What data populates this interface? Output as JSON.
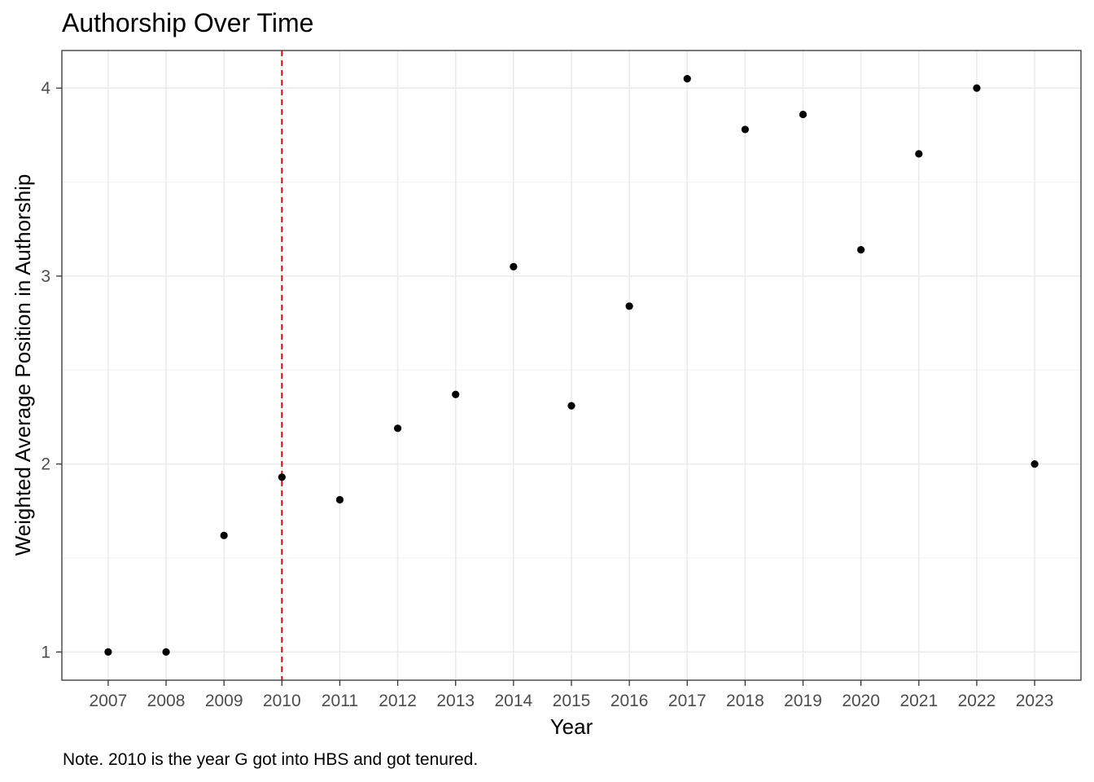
{
  "chart_data": {
    "type": "scatter",
    "title": "Authorship Over Time",
    "xlabel": "Year",
    "ylabel": "Weighted Average Position in Authorship",
    "x": [
      2007,
      2008,
      2009,
      2010,
      2011,
      2012,
      2013,
      2014,
      2015,
      2016,
      2017,
      2018,
      2019,
      2020,
      2021,
      2022,
      2023
    ],
    "y": [
      1.0,
      1.0,
      1.62,
      1.93,
      1.81,
      2.19,
      2.37,
      3.05,
      2.31,
      2.84,
      4.05,
      3.78,
      3.86,
      3.14,
      3.65,
      4.0,
      2.0
    ],
    "x_ticks": [
      "2007",
      "2008",
      "2009",
      "2010",
      "2011",
      "2012",
      "2013",
      "2014",
      "2015",
      "2016",
      "2017",
      "2018",
      "2019",
      "2020",
      "2021",
      "2022",
      "2023"
    ],
    "y_ticks": [
      1,
      2,
      3,
      4
    ],
    "xlim": [
      2006.2,
      2023.8
    ],
    "ylim": [
      0.85,
      4.2
    ],
    "grid": true,
    "reference_line": {
      "x": 2010,
      "color": "#cc0000",
      "style": "dashed"
    },
    "point_color": "#000000",
    "note": "Note. 2010 is the year G got into HBS and got tenured."
  }
}
